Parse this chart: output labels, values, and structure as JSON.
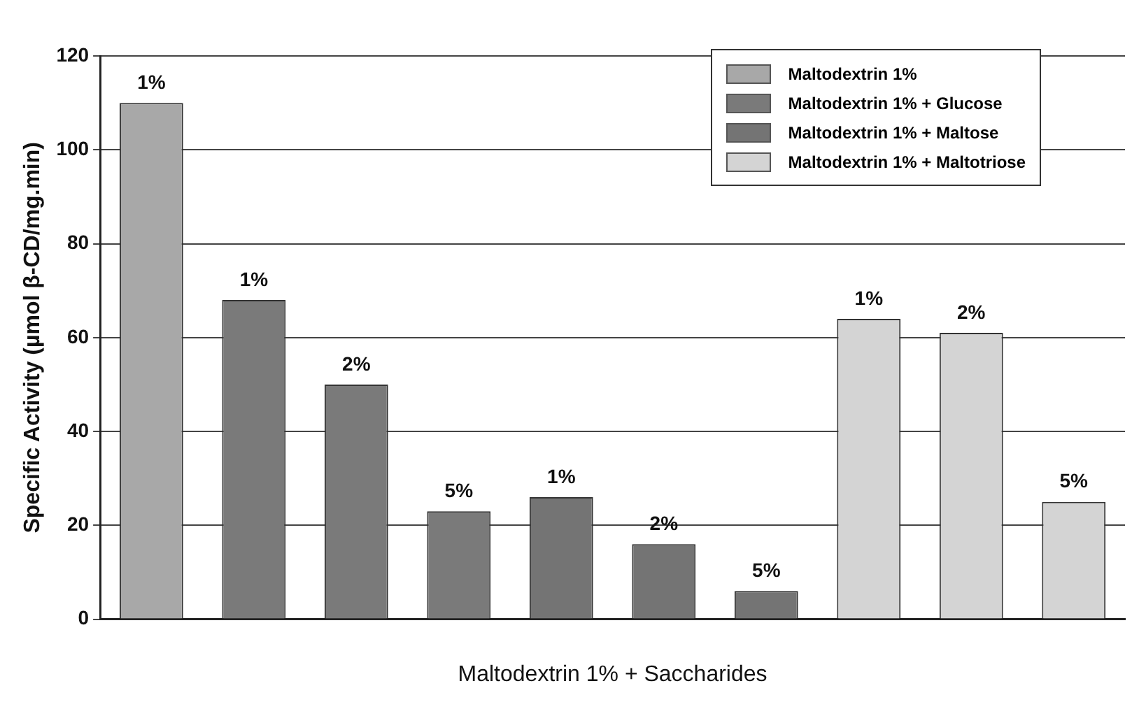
{
  "chart_data": {
    "type": "bar",
    "xlabel": "Maltodextrin 1% + Saccharides",
    "ylabel": "Specific Activity (µmol β-CD/mg.min)",
    "categories": [
      "1%",
      "1%",
      "2%",
      "5%",
      "1%",
      "2%",
      "5%",
      "1%",
      "2%",
      "5%"
    ],
    "series": [
      {
        "name": "Maltodextrin 1%",
        "color": "#a8a8a8",
        "values": [
          110,
          null,
          null,
          null,
          null,
          null,
          null,
          null,
          null,
          null
        ]
      },
      {
        "name": "Maltodextrin 1% + Glucose",
        "color": "#7a7a7a",
        "values": [
          null,
          68,
          50,
          23,
          null,
          null,
          null,
          null,
          null,
          null
        ]
      },
      {
        "name": "Maltodextrin 1% + Maltose",
        "color": "#747474",
        "values": [
          null,
          null,
          null,
          null,
          26,
          16,
          6,
          null,
          null,
          null
        ]
      },
      {
        "name": "Maltodextrin 1% + Maltotriose",
        "color": "#d4d4d4",
        "values": [
          null,
          null,
          null,
          null,
          null,
          null,
          null,
          64,
          61,
          25
        ]
      }
    ],
    "ylim": [
      0,
      120
    ],
    "yticks": [
      0,
      20,
      40,
      60,
      80,
      100,
      120
    ],
    "grid": "y",
    "legend": "top right",
    "tick_labels": "y"
  }
}
